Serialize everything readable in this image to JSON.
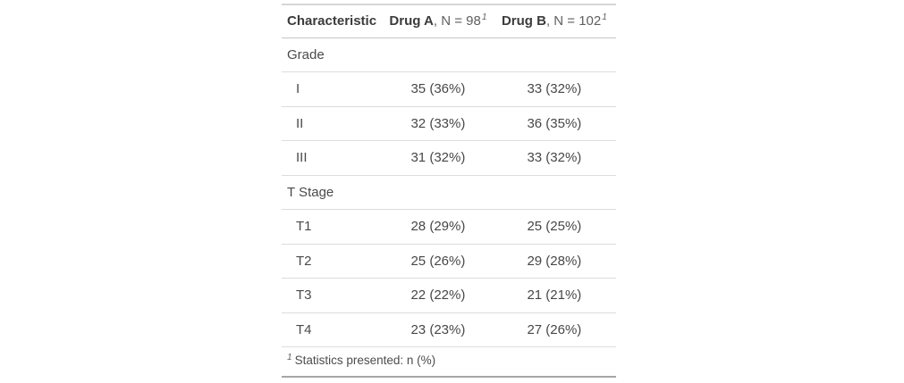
{
  "chart_data": {
    "type": "table",
    "columns": [
      "Characteristic",
      "Drug A, N = 98",
      "Drug B, N = 102"
    ],
    "rows": [
      [
        "Grade",
        "",
        ""
      ],
      [
        "I",
        "35 (36%)",
        "33 (32%)"
      ],
      [
        "II",
        "32 (33%)",
        "36 (35%)"
      ],
      [
        "III",
        "31 (32%)",
        "33 (32%)"
      ],
      [
        "T Stage",
        "",
        ""
      ],
      [
        "T1",
        "28 (29%)",
        "25 (25%)"
      ],
      [
        "T2",
        "25 (26%)",
        "29 (28%)"
      ],
      [
        "T3",
        "22 (22%)",
        "21 (21%)"
      ],
      [
        "T4",
        "23 (23%)",
        "27 (26%)"
      ]
    ],
    "footnote": "1 Statistics presented: n (%)",
    "layout": "header row bold, value columns centered, group rows unindented, level rows indented"
  },
  "table": {
    "header": [
      {
        "label": "Characteristic"
      },
      {
        "bold": "Drug A",
        "rest": ", N = 98",
        "mark": "1"
      },
      {
        "bold": "Drug B",
        "rest": ", N = 102",
        "mark": "1"
      }
    ],
    "rows": [
      {
        "label": "Grade",
        "drug_a": "",
        "drug_b": ""
      },
      {
        "label": "I",
        "drug_a": "35 (36%)",
        "drug_b": "33 (32%)"
      },
      {
        "label": "II",
        "drug_a": "32 (33%)",
        "drug_b": "36 (35%)"
      },
      {
        "label": "III",
        "drug_a": "31 (32%)",
        "drug_b": "33 (32%)"
      },
      {
        "label": "T Stage",
        "drug_a": "",
        "drug_b": ""
      },
      {
        "label": "T1",
        "drug_a": "28 (29%)",
        "drug_b": "25 (25%)"
      },
      {
        "label": "T2",
        "drug_a": "25 (26%)",
        "drug_b": "29 (28%)"
      },
      {
        "label": "T3",
        "drug_a": "22 (22%)",
        "drug_b": "21 (21%)"
      },
      {
        "label": "T4",
        "drug_a": "23 (23%)",
        "drug_b": "27 (26%)"
      }
    ],
    "footnote": {
      "mark": "1",
      "text": "Statistics presented: n (%)"
    },
    "colors": {
      "header_text": "#3b3b3b",
      "body_text": "#474747",
      "muted_text": "#5f5f5f",
      "row_border": "#dcdcdc",
      "header_border": "#c6c6c6",
      "top_border": "#d6d6d6",
      "bottom_border": "#a6a6a6",
      "background": "#ffffff"
    }
  }
}
